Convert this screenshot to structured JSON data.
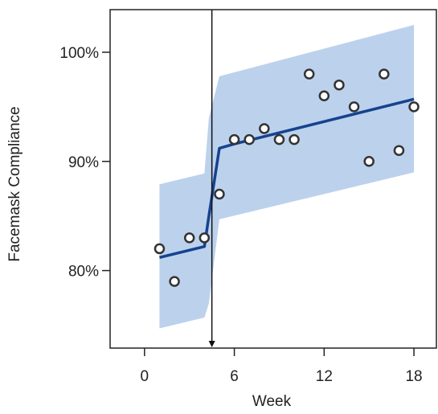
{
  "chart_data": {
    "type": "line",
    "title": "",
    "xlabel": "Week",
    "ylabel": "Facemask Compliance",
    "xlim": [
      -2.3,
      19.5
    ],
    "ylim": [
      72.9,
      103.9
    ],
    "xticks": [
      0,
      6,
      12,
      18
    ],
    "xtick_labels": [
      "0",
      "6",
      "12",
      "18"
    ],
    "yticks": [
      80,
      90,
      100
    ],
    "ytick_labels": [
      "80%",
      "90%",
      "100%"
    ],
    "grid": false,
    "legend": "none",
    "intervention_week": 4.5,
    "series": [
      {
        "kind": "points",
        "x": [
          1,
          2,
          3,
          4,
          5,
          6,
          7,
          8,
          9,
          10,
          11,
          12,
          13,
          14,
          15,
          16,
          17,
          18
        ],
        "y": [
          82,
          79,
          83,
          83,
          87,
          92,
          92,
          93,
          92,
          92,
          98,
          96,
          97,
          95,
          90,
          98,
          91,
          95
        ]
      },
      {
        "kind": "fitted-line",
        "x": [
          1,
          4,
          4.3,
          5,
          6,
          18
        ],
        "y": [
          81.2,
          82.2,
          85,
          91.2,
          91.6,
          95.7
        ]
      },
      {
        "kind": "confidence-band",
        "x": [
          1,
          4,
          4.3,
          5,
          18
        ],
        "lower": [
          74.7,
          75.7,
          77,
          84.7,
          89
        ],
        "upper": [
          87.9,
          88.9,
          94,
          97.8,
          102.5
        ]
      }
    ],
    "colors": {
      "band": "#bcd1ec",
      "fit_line": "#16428f",
      "points_stroke": "#333333",
      "points_fill": "#ffffff",
      "axis": "#222222",
      "intervention_line": "#111111"
    }
  }
}
